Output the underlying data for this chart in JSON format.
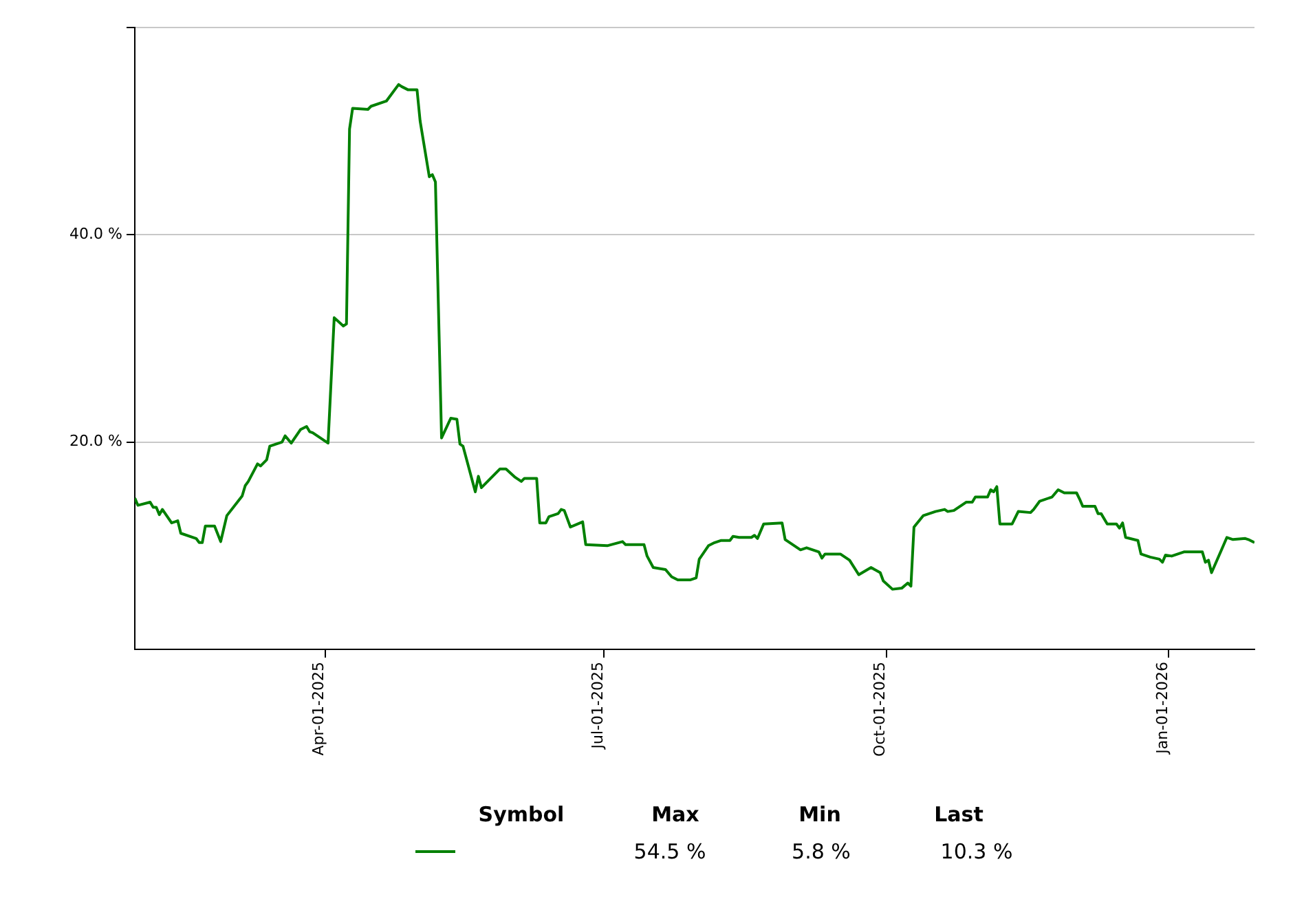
{
  "chart_data": {
    "type": "line",
    "x": [
      "2025-01-29",
      "2025-01-30",
      "2025-02-03",
      "2025-02-04",
      "2025-02-05",
      "2025-02-06",
      "2025-02-07",
      "2025-02-10",
      "2025-02-12",
      "2025-02-13",
      "2025-02-18",
      "2025-02-19",
      "2025-02-20",
      "2025-02-21",
      "2025-02-24",
      "2025-02-26",
      "2025-02-28",
      "2025-03-05",
      "2025-03-06",
      "2025-03-07",
      "2025-03-10",
      "2025-03-11",
      "2025-03-13",
      "2025-03-14",
      "2025-03-18",
      "2025-03-19",
      "2025-03-21",
      "2025-03-24",
      "2025-03-26",
      "2025-03-27",
      "2025-03-28",
      "2025-04-02",
      "2025-04-04",
      "2025-04-07",
      "2025-04-08",
      "2025-04-09",
      "2025-04-10",
      "2025-04-15",
      "2025-04-16",
      "2025-04-21",
      "2025-04-25",
      "2025-04-26",
      "2025-04-28",
      "2025-05-01",
      "2025-05-02",
      "2025-05-05",
      "2025-05-06",
      "2025-05-07",
      "2025-05-09",
      "2025-05-12",
      "2025-05-14",
      "2025-05-15",
      "2025-05-16",
      "2025-05-20",
      "2025-05-21",
      "2025-05-22",
      "2025-05-28",
      "2025-05-30",
      "2025-06-02",
      "2025-06-04",
      "2025-06-05",
      "2025-06-09",
      "2025-06-10",
      "2025-06-12",
      "2025-06-13",
      "2025-06-16",
      "2025-06-17",
      "2025-06-18",
      "2025-06-20",
      "2025-06-24",
      "2025-06-25",
      "2025-07-02",
      "2025-07-07",
      "2025-07-08",
      "2025-07-14",
      "2025-07-15",
      "2025-07-17",
      "2025-07-21",
      "2025-07-23",
      "2025-07-25",
      "2025-07-29",
      "2025-07-31",
      "2025-08-01",
      "2025-08-04",
      "2025-08-06",
      "2025-08-08",
      "2025-08-11",
      "2025-08-12",
      "2025-08-14",
      "2025-08-18",
      "2025-08-19",
      "2025-08-20",
      "2025-08-22",
      "2025-08-28",
      "2025-08-29",
      "2025-09-03",
      "2025-09-05",
      "2025-09-09",
      "2025-09-10",
      "2025-09-11",
      "2025-09-16",
      "2025-09-19",
      "2025-09-22",
      "2025-09-26",
      "2025-09-29",
      "2025-09-30",
      "2025-10-03",
      "2025-10-06",
      "2025-10-08",
      "2025-10-09",
      "2025-10-10",
      "2025-10-13",
      "2025-10-15",
      "2025-10-17",
      "2025-10-20",
      "2025-10-21",
      "2025-10-23",
      "2025-10-27",
      "2025-10-29",
      "2025-10-30",
      "2025-11-03",
      "2025-11-04",
      "2025-11-05",
      "2025-11-06",
      "2025-11-07",
      "2025-11-11",
      "2025-11-13",
      "2025-11-17",
      "2025-11-18",
      "2025-11-20",
      "2025-11-24",
      "2025-11-26",
      "2025-11-28",
      "2025-12-02",
      "2025-12-03",
      "2025-12-04",
      "2025-12-08",
      "2025-12-09",
      "2025-12-10",
      "2025-12-12",
      "2025-12-15",
      "2025-12-16",
      "2025-12-17",
      "2025-12-18",
      "2025-12-22",
      "2025-12-23",
      "2025-12-26",
      "2025-12-29",
      "2025-12-30",
      "2025-12-31",
      "2026-01-02",
      "2026-01-06",
      "2026-01-12",
      "2026-01-13",
      "2026-01-14",
      "2026-01-15",
      "2026-01-20",
      "2026-01-22",
      "2026-01-26",
      "2026-01-27",
      "2026-01-29"
    ],
    "series": [
      {
        "color": "#008000",
        "values": [
          14.6,
          13.9,
          14.2,
          13.7,
          13.7,
          13.0,
          13.5,
          12.2,
          12.4,
          11.2,
          10.7,
          10.3,
          10.3,
          11.9,
          11.9,
          10.4,
          12.9,
          14.8,
          15.8,
          16.2,
          17.9,
          17.7,
          18.3,
          19.6,
          20.0,
          20.6,
          19.9,
          21.2,
          21.5,
          21.0,
          20.9,
          19.9,
          32.0,
          31.2,
          31.4,
          50.2,
          52.2,
          52.1,
          52.4,
          52.9,
          54.5,
          54.3,
          54.0,
          54.0,
          51.0,
          45.6,
          45.8,
          45.1,
          20.4,
          22.3,
          22.2,
          19.8,
          19.6,
          15.2,
          16.7,
          15.6,
          17.4,
          17.4,
          16.6,
          16.2,
          16.5,
          16.5,
          12.2,
          12.2,
          12.8,
          13.1,
          13.5,
          13.4,
          11.8,
          12.3,
          10.1,
          10.0,
          10.4,
          10.1,
          10.1,
          9.0,
          7.9,
          7.7,
          7.0,
          6.7,
          6.7,
          6.9,
          8.7,
          10.0,
          10.3,
          10.5,
          10.5,
          10.9,
          10.8,
          10.8,
          11.0,
          10.7,
          12.1,
          12.2,
          10.6,
          9.6,
          9.8,
          9.4,
          8.8,
          9.2,
          9.2,
          8.6,
          7.2,
          7.9,
          7.4,
          6.6,
          5.8,
          5.9,
          6.4,
          6.1,
          11.8,
          12.9,
          13.1,
          13.3,
          13.5,
          13.3,
          13.4,
          14.2,
          14.2,
          14.7,
          14.7,
          15.4,
          15.2,
          15.7,
          12.1,
          12.1,
          13.3,
          13.2,
          13.5,
          14.3,
          14.7,
          15.4,
          15.1,
          15.1,
          14.5,
          13.8,
          13.8,
          13.1,
          13.1,
          12.1,
          12.1,
          11.7,
          12.2,
          10.8,
          10.5,
          9.2,
          8.9,
          8.7,
          8.4,
          9.1,
          9.0,
          9.4,
          9.4,
          8.4,
          8.6,
          7.4,
          10.8,
          10.6,
          10.7,
          10.6,
          10.3
        ]
      }
    ],
    "xlim": [
      "2025-01-29",
      "2026-01-29"
    ],
    "xticks": [
      {
        "value": "2025-04-01",
        "label": "Apr-01-2025"
      },
      {
        "value": "2025-07-01",
        "label": "Jul-01-2025"
      },
      {
        "value": "2025-10-01",
        "label": "Oct-01-2025"
      },
      {
        "value": "2026-01-01",
        "label": "Jan-01-2026"
      }
    ],
    "ylim": [
      0,
      60
    ],
    "yticks": [
      {
        "value": 20,
        "label": "20.0 %"
      },
      {
        "value": 40,
        "label": "40.0 %"
      },
      {
        "value": 60,
        "label": null
      }
    ],
    "grid": "y",
    "marker": "none",
    "line_style": "solid",
    "annotations": [
      "Symbol",
      "Max",
      "Min",
      "Last",
      "54.5 %",
      "5.8 %",
      "10.3 %"
    ]
  }
}
